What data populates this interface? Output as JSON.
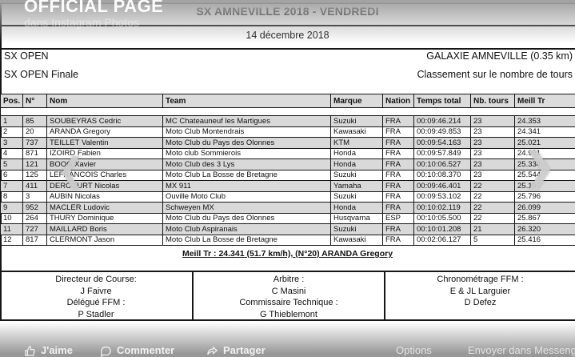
{
  "viewer": {
    "watermark_title": "OFFICIAL PAGE",
    "watermark_subtitle": "dans Instagram Photos",
    "prev_arrow": "❮",
    "next_arrow": "❯",
    "actions": {
      "like": "J'aime",
      "comment": "Commenter",
      "share": "Partager",
      "options": "Options",
      "send_messenger": "Envoyer dans Messenger"
    }
  },
  "document": {
    "title": "SX AMNEVILLE 2018 - VENDREDI",
    "date": "14 décembre 2018",
    "class_label": "SX OPEN",
    "session_label": "SX OPEN Finale",
    "track_label": "GALAXIE AMNEVILLE (0.35 km)",
    "ranking_label": "Classement sur le nombre de tours",
    "best_lap_line": "Meill Tr : 24.341 (51.7 km/h), (N°20) ARANDA Gregory",
    "results": {
      "columns": [
        "Pos.",
        "N°",
        "Nom",
        "Team",
        "Marque",
        "Nation",
        "Temps total",
        "Nb. tours",
        "Meill Tr"
      ],
      "rows": [
        [
          "1",
          "85",
          "SOUBEYRAS Cedric",
          "MC Chateauneuf les Martigues",
          "Suzuki",
          "FRA",
          "00:09:46.214",
          "23",
          "24.353"
        ],
        [
          "2",
          "20",
          "ARANDA Gregory",
          "Moto Club Montendrais",
          "Kawasaki",
          "FRA",
          "00:09:49.853",
          "23",
          "24.341"
        ],
        [
          "3",
          "737",
          "TEILLET Valentin",
          "Moto Club du Pays des Olonnes",
          "KTM",
          "FRA",
          "00:09:54.163",
          "23",
          "25.021"
        ],
        [
          "4",
          "871",
          "IZOIRD Fabien",
          "Moto club Sommierois",
          "Honda",
          "FRA",
          "00:09:57.849",
          "23",
          "24.991"
        ],
        [
          "5",
          "121",
          "BOOG Xavier",
          "Moto Club des 3 Lys",
          "Honda",
          "FRA",
          "00:10:06.527",
          "23",
          "25.334"
        ],
        [
          "6",
          "125",
          "LEFRANCOIS Charles",
          "Moto Club La Bosse de Bretagne",
          "Suzuki",
          "FRA",
          "00:10:08.370",
          "23",
          "25.544"
        ],
        [
          "7",
          "411",
          "DERCOURT Nicolas",
          "MX 911",
          "Yamaha",
          "FRA",
          "00:09:46.401",
          "22",
          "25.197"
        ],
        [
          "8",
          "3",
          "AUBIN Nicolas",
          "Ouville Moto Club",
          "Suzuki",
          "FRA",
          "00:09:53.102",
          "22",
          "25.796"
        ],
        [
          "9",
          "952",
          "MACLER Ludovic",
          "Schweyen MX",
          "Honda",
          "FRA",
          "00:10:02.119",
          "22",
          "26.099"
        ],
        [
          "10",
          "264",
          "THURY Dominique",
          "Moto Club du Pays des Olonnes",
          "Husqvarna",
          "ESP",
          "00:10:05.500",
          "22",
          "25.867"
        ],
        [
          "11",
          "727",
          "MAILLARD Boris",
          "Moto Club Aspiranais",
          "Suzuki",
          "FRA",
          "00:10:01.208",
          "21",
          "26.320"
        ],
        [
          "12",
          "817",
          "CLERMONT Jason",
          "Moto Club La Bosse de Bretagne",
          "Kawasaki",
          "FRA",
          "00:02:06.127",
          "5",
          "25.416"
        ]
      ]
    },
    "officials": [
      {
        "lines": [
          "Directeur de Course:",
          "J Faivre",
          "Délégué FFM :",
          "P Stadler"
        ]
      },
      {
        "lines": [
          "Arbitre :",
          "C Masini",
          "Commissaire Technique :",
          "G Thieblemont"
        ]
      },
      {
        "lines": [
          "Chronométrage FFM :",
          "E & JL Larguier",
          "D Defez"
        ]
      }
    ]
  }
}
